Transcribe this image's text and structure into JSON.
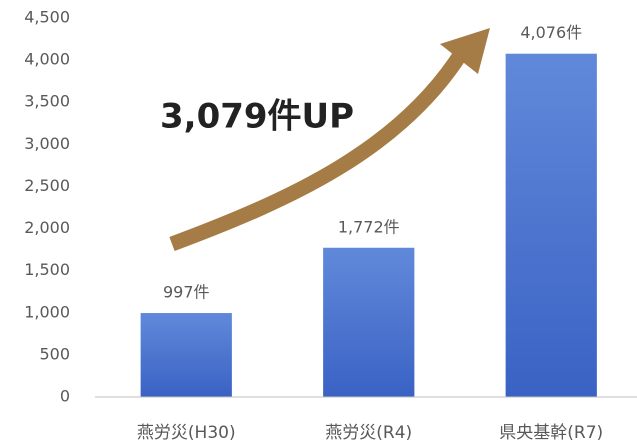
{
  "chart_data": {
    "type": "bar",
    "annotation": "3,079件UP",
    "categories": [
      "燕労災(H30)",
      "燕労災(R4)",
      "県央基幹(R7)"
    ],
    "values": [
      997,
      1772,
      4076
    ],
    "value_labels": [
      "997件",
      "1,772件",
      "4,076件"
    ],
    "color": "#4472c4",
    "ylim": [
      0,
      4500
    ],
    "yticks": [
      0,
      500,
      {
        "value": 1000,
        "label": "1,000"
      },
      {
        "value": 1500,
        "label": "1,500"
      },
      {
        "value": 2000,
        "label": "2,000"
      },
      {
        "value": 2500,
        "label": "2,500"
      },
      {
        "value": 3000,
        "label": "3,000"
      },
      {
        "value": 3500,
        "label": "3,500"
      },
      {
        "value": 4000,
        "label": "4,000"
      },
      {
        "value": 4500,
        "label": "4,500"
      }
    ],
    "grid": false
  }
}
